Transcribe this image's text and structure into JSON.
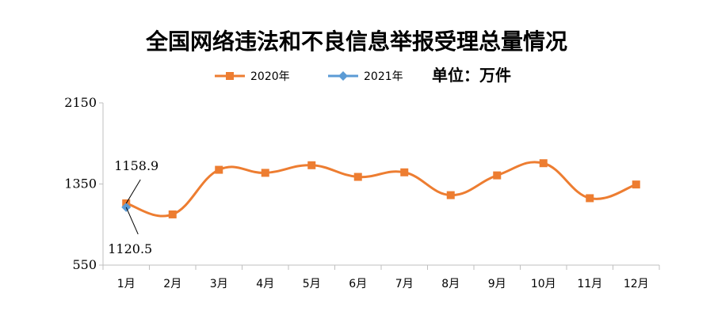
{
  "chart_data": {
    "type": "line",
    "title": "全国网络违法和不良信息举报受理总量情况",
    "unit_label": "单位：万件",
    "categories": [
      "1月",
      "2月",
      "3月",
      "4月",
      "5月",
      "6月",
      "7月",
      "8月",
      "9月",
      "10月",
      "11月",
      "12月"
    ],
    "ylim": [
      550,
      2150
    ],
    "yticks": [
      "550",
      "1350",
      "2150"
    ],
    "legend_position": "top-center",
    "series": [
      {
        "name": "2020年",
        "color": "#ED7D31",
        "marker": "square",
        "values": [
          1158.9,
          1050,
          1490,
          1460,
          1535,
          1420,
          1465,
          1240,
          1435,
          1555,
          1210,
          1345
        ]
      },
      {
        "name": "2021年",
        "color": "#5B9BD5",
        "marker": "diamond",
        "values": [
          1120.5,
          null,
          null,
          null,
          null,
          null,
          null,
          null,
          null,
          null,
          null,
          null
        ]
      }
    ],
    "annotations": [
      {
        "series": 0,
        "index": 0,
        "text": "1158.9"
      },
      {
        "series": 1,
        "index": 0,
        "text": "1120.5"
      }
    ]
  }
}
